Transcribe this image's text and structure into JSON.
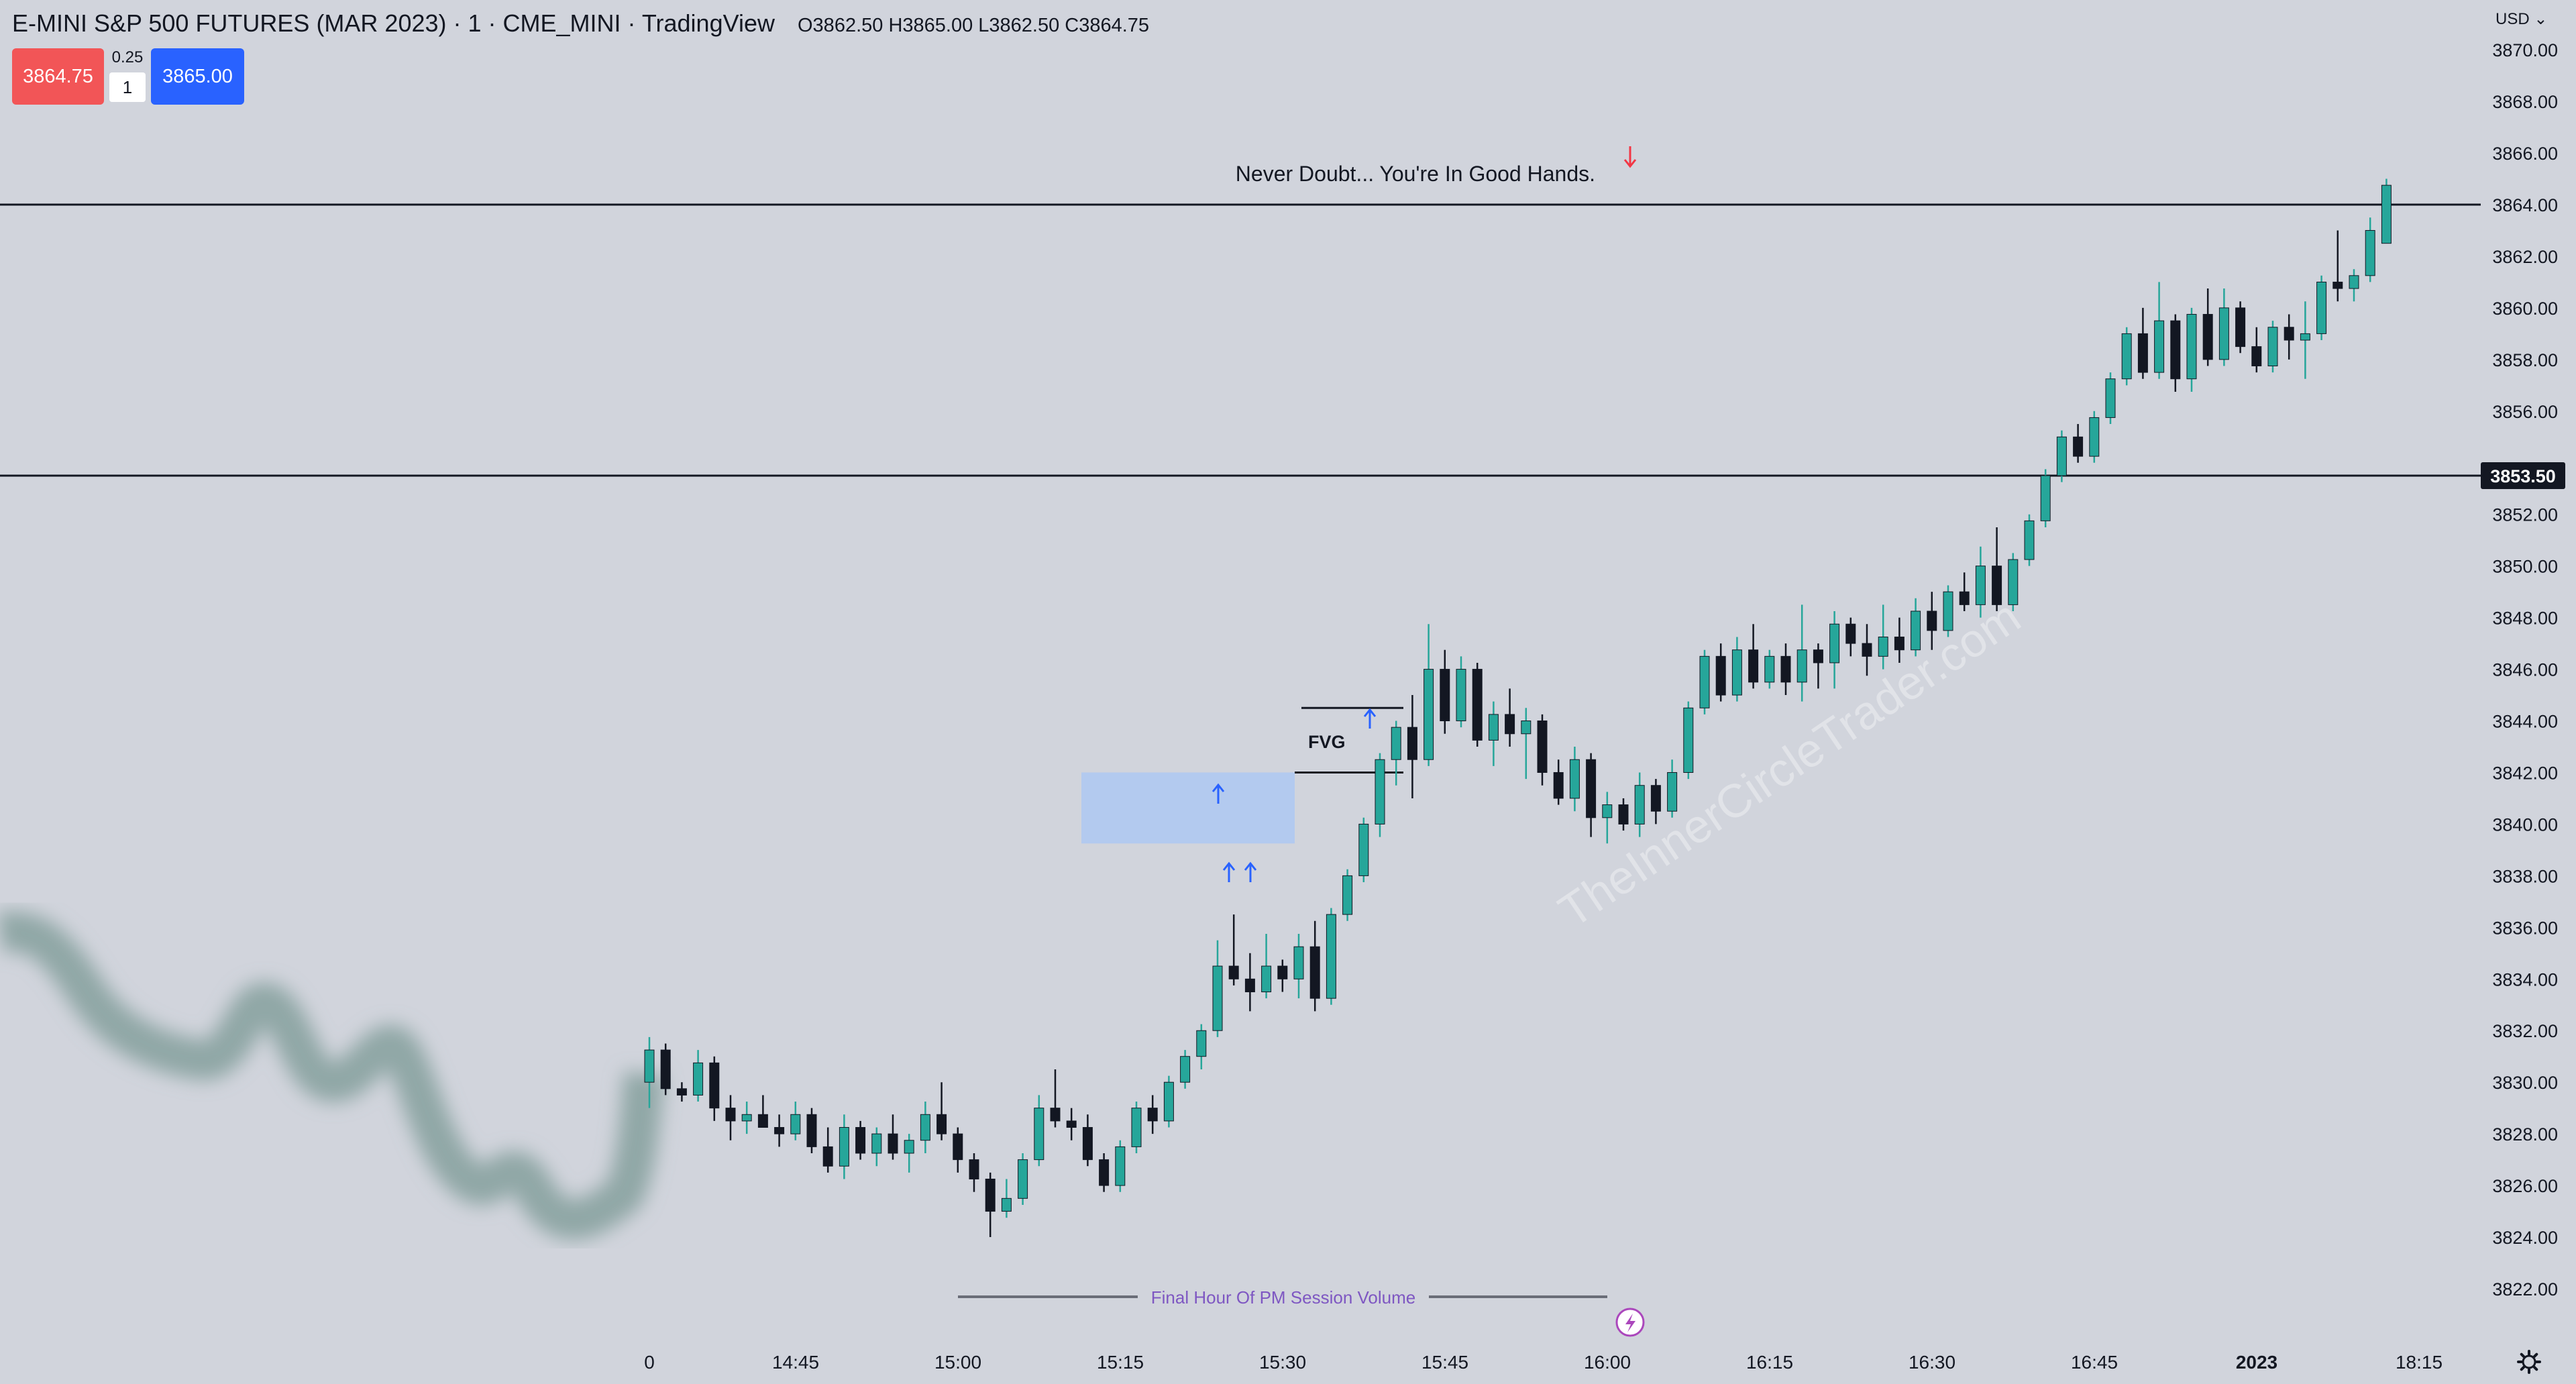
{
  "header": {
    "symbol_title": "E-MINI S&P 500 FUTURES (MAR 2023) · 1 · CME_MINI · TradingView",
    "ohlc": "O3862.50 H3865.00 L3862.50 C3864.75",
    "sell_price": "3864.75",
    "buy_price": "3865.00",
    "spread": "0.25",
    "quantity": "1",
    "currency": "USD"
  },
  "annotations": {
    "headline": "Never Doubt... You're In Good Hands.",
    "fvg_label": "FVG",
    "volume_label": "Final Hour Of PM Session Volume",
    "watermark": "TheInnerCircleTrader.com",
    "current_price_label": "3853.50"
  },
  "colors": {
    "background": "#d1d4dc",
    "up_candle": "#26a69a",
    "down_candle": "#131722",
    "fvg_box": "#a8c7f5",
    "arrow_blue": "#2962ff",
    "arrow_red": "#f23645",
    "volume_text": "#7e57c2"
  },
  "icons": {
    "settings": "gear-icon",
    "replay": "lightning-icon"
  },
  "chart_data": {
    "type": "candlestick",
    "title": "E-MINI S&P 500 FUTURES (MAR 2023) · 1 · CME_MINI · TradingView",
    "x_tick_labels": [
      "0",
      "14:45",
      "15:00",
      "15:15",
      "15:30",
      "15:45",
      "16:00",
      "16:15",
      "16:30",
      "16:45",
      "2023",
      "18:15"
    ],
    "y_tick_labels": [
      "3870.00",
      "3868.00",
      "3866.00",
      "3864.00",
      "3862.00",
      "3860.00",
      "3858.00",
      "3856.00",
      "3854.00",
      "3852.00",
      "3850.00",
      "3848.00",
      "3846.00",
      "3844.00",
      "3842.00",
      "3840.00",
      "3838.00",
      "3836.00",
      "3834.00",
      "3832.00",
      "3830.00",
      "3828.00",
      "3826.00",
      "3824.00",
      "3822.00"
    ],
    "ylim": [
      3821,
      3871
    ],
    "horizontal_lines": [
      3864.0,
      3853.5
    ],
    "fvg_zone": {
      "y_top": 3842.0,
      "y_bottom": 3839.25
    },
    "fvg_bounds": [
      3844.5,
      3842.0
    ],
    "candles": [
      {
        "t": "14:39",
        "o": 3830.0,
        "h": 3831.75,
        "l": 3829.0,
        "c": 3831.25
      },
      {
        "t": "14:40",
        "o": 3831.25,
        "h": 3831.5,
        "l": 3829.5,
        "c": 3829.75
      },
      {
        "t": "14:41",
        "o": 3829.75,
        "h": 3830.0,
        "l": 3829.25,
        "c": 3829.5
      },
      {
        "t": "14:42",
        "o": 3829.5,
        "h": 3831.25,
        "l": 3829.25,
        "c": 3830.75
      },
      {
        "t": "14:43",
        "o": 3830.75,
        "h": 3831.0,
        "l": 3828.5,
        "c": 3829.0
      },
      {
        "t": "14:44",
        "o": 3829.0,
        "h": 3829.5,
        "l": 3827.75,
        "c": 3828.5
      },
      {
        "t": "14:45",
        "o": 3828.5,
        "h": 3829.25,
        "l": 3828.0,
        "c": 3828.75
      },
      {
        "t": "14:46",
        "o": 3828.75,
        "h": 3829.5,
        "l": 3828.25,
        "c": 3828.25
      },
      {
        "t": "14:47",
        "o": 3828.25,
        "h": 3828.75,
        "l": 3827.5,
        "c": 3828.0
      },
      {
        "t": "14:48",
        "o": 3828.0,
        "h": 3829.25,
        "l": 3827.75,
        "c": 3828.75
      },
      {
        "t": "14:49",
        "o": 3828.75,
        "h": 3829.0,
        "l": 3827.25,
        "c": 3827.5
      },
      {
        "t": "14:50",
        "o": 3827.5,
        "h": 3828.25,
        "l": 3826.5,
        "c": 3826.75
      },
      {
        "t": "14:51",
        "o": 3826.75,
        "h": 3828.75,
        "l": 3826.25,
        "c": 3828.25
      },
      {
        "t": "14:52",
        "o": 3828.25,
        "h": 3828.5,
        "l": 3827.0,
        "c": 3827.25
      },
      {
        "t": "14:53",
        "o": 3827.25,
        "h": 3828.25,
        "l": 3826.75,
        "c": 3828.0
      },
      {
        "t": "14:54",
        "o": 3828.0,
        "h": 3828.75,
        "l": 3827.0,
        "c": 3827.25
      },
      {
        "t": "14:55",
        "o": 3827.25,
        "h": 3828.0,
        "l": 3826.5,
        "c": 3827.75
      },
      {
        "t": "14:56",
        "o": 3827.75,
        "h": 3829.25,
        "l": 3827.25,
        "c": 3828.75
      },
      {
        "t": "14:57",
        "o": 3828.75,
        "h": 3830.0,
        "l": 3827.75,
        "c": 3828.0
      },
      {
        "t": "14:58",
        "o": 3828.0,
        "h": 3828.25,
        "l": 3826.5,
        "c": 3827.0
      },
      {
        "t": "14:59",
        "o": 3827.0,
        "h": 3827.25,
        "l": 3825.75,
        "c": 3826.25
      },
      {
        "t": "15:00",
        "o": 3826.25,
        "h": 3826.5,
        "l": 3824.0,
        "c": 3825.0
      },
      {
        "t": "15:01",
        "o": 3825.0,
        "h": 3826.25,
        "l": 3824.75,
        "c": 3825.5
      },
      {
        "t": "15:02",
        "o": 3825.5,
        "h": 3827.25,
        "l": 3825.25,
        "c": 3827.0
      },
      {
        "t": "15:03",
        "o": 3827.0,
        "h": 3829.5,
        "l": 3826.75,
        "c": 3829.0
      },
      {
        "t": "15:04",
        "o": 3829.0,
        "h": 3830.5,
        "l": 3828.25,
        "c": 3828.5
      },
      {
        "t": "15:05",
        "o": 3828.5,
        "h": 3829.0,
        "l": 3827.75,
        "c": 3828.25
      },
      {
        "t": "15:06",
        "o": 3828.25,
        "h": 3828.75,
        "l": 3826.75,
        "c": 3827.0
      },
      {
        "t": "15:07",
        "o": 3827.0,
        "h": 3827.25,
        "l": 3825.75,
        "c": 3826.0
      },
      {
        "t": "15:08",
        "o": 3826.0,
        "h": 3827.75,
        "l": 3825.75,
        "c": 3827.5
      },
      {
        "t": "15:09",
        "o": 3827.5,
        "h": 3829.25,
        "l": 3827.25,
        "c": 3829.0
      },
      {
        "t": "15:10",
        "o": 3829.0,
        "h": 3829.5,
        "l": 3828.0,
        "c": 3828.5
      },
      {
        "t": "15:11",
        "o": 3828.5,
        "h": 3830.25,
        "l": 3828.25,
        "c": 3830.0
      },
      {
        "t": "15:12",
        "o": 3830.0,
        "h": 3831.25,
        "l": 3829.75,
        "c": 3831.0
      },
      {
        "t": "15:13",
        "o": 3831.0,
        "h": 3832.25,
        "l": 3830.5,
        "c": 3832.0
      },
      {
        "t": "15:14",
        "o": 3832.0,
        "h": 3835.5,
        "l": 3831.75,
        "c": 3834.5
      },
      {
        "t": "15:15",
        "o": 3834.5,
        "h": 3836.5,
        "l": 3833.75,
        "c": 3834.0
      },
      {
        "t": "15:16",
        "o": 3834.0,
        "h": 3835.0,
        "l": 3832.75,
        "c": 3833.5
      },
      {
        "t": "15:17",
        "o": 3833.5,
        "h": 3835.75,
        "l": 3833.25,
        "c": 3834.5
      },
      {
        "t": "15:18",
        "o": 3834.5,
        "h": 3834.75,
        "l": 3833.5,
        "c": 3834.0
      },
      {
        "t": "15:19",
        "o": 3834.0,
        "h": 3835.75,
        "l": 3833.25,
        "c": 3835.25
      },
      {
        "t": "15:20",
        "o": 3835.25,
        "h": 3836.25,
        "l": 3832.75,
        "c": 3833.25
      },
      {
        "t": "15:21",
        "o": 3833.25,
        "h": 3836.75,
        "l": 3833.0,
        "c": 3836.5
      },
      {
        "t": "15:22",
        "o": 3836.5,
        "h": 3838.25,
        "l": 3836.25,
        "c": 3838.0
      },
      {
        "t": "15:23",
        "o": 3838.0,
        "h": 3840.25,
        "l": 3837.75,
        "c": 3840.0
      },
      {
        "t": "15:24",
        "o": 3840.0,
        "h": 3842.75,
        "l": 3839.5,
        "c": 3842.5
      },
      {
        "t": "15:25",
        "o": 3842.5,
        "h": 3844.0,
        "l": 3841.5,
        "c": 3843.75
      },
      {
        "t": "15:26",
        "o": 3843.75,
        "h": 3845.0,
        "l": 3841.0,
        "c": 3842.5
      },
      {
        "t": "15:27",
        "o": 3842.5,
        "h": 3847.75,
        "l": 3842.25,
        "c": 3846.0
      },
      {
        "t": "15:28",
        "o": 3846.0,
        "h": 3846.75,
        "l": 3843.5,
        "c": 3844.0
      },
      {
        "t": "15:29",
        "o": 3844.0,
        "h": 3846.5,
        "l": 3843.75,
        "c": 3846.0
      },
      {
        "t": "15:30",
        "o": 3846.0,
        "h": 3846.25,
        "l": 3843.0,
        "c": 3843.25
      },
      {
        "t": "15:31",
        "o": 3843.25,
        "h": 3844.75,
        "l": 3842.25,
        "c": 3844.25
      },
      {
        "t": "15:32",
        "o": 3844.25,
        "h": 3845.25,
        "l": 3843.0,
        "c": 3843.5
      },
      {
        "t": "15:33",
        "o": 3843.5,
        "h": 3844.5,
        "l": 3841.75,
        "c": 3844.0
      },
      {
        "t": "15:34",
        "o": 3844.0,
        "h": 3844.25,
        "l": 3841.5,
        "c": 3842.0
      },
      {
        "t": "15:35",
        "o": 3842.0,
        "h": 3842.5,
        "l": 3840.75,
        "c": 3841.0
      },
      {
        "t": "15:36",
        "o": 3841.0,
        "h": 3843.0,
        "l": 3840.5,
        "c": 3842.5
      },
      {
        "t": "15:37",
        "o": 3842.5,
        "h": 3842.75,
        "l": 3839.5,
        "c": 3840.25
      },
      {
        "t": "15:38",
        "o": 3840.25,
        "h": 3841.25,
        "l": 3839.25,
        "c": 3840.75
      },
      {
        "t": "15:39",
        "o": 3840.75,
        "h": 3841.0,
        "l": 3839.75,
        "c": 3840.0
      },
      {
        "t": "15:40",
        "o": 3840.0,
        "h": 3842.0,
        "l": 3839.5,
        "c": 3841.5
      },
      {
        "t": "15:41",
        "o": 3841.5,
        "h": 3841.75,
        "l": 3840.0,
        "c": 3840.5
      },
      {
        "t": "15:42",
        "o": 3840.5,
        "h": 3842.5,
        "l": 3840.25,
        "c": 3842.0
      },
      {
        "t": "15:43",
        "o": 3842.0,
        "h": 3844.75,
        "l": 3841.75,
        "c": 3844.5
      },
      {
        "t": "15:44",
        "o": 3844.5,
        "h": 3846.75,
        "l": 3844.25,
        "c": 3846.5
      },
      {
        "t": "15:45",
        "o": 3846.5,
        "h": 3847.0,
        "l": 3844.75,
        "c": 3845.0
      },
      {
        "t": "15:46",
        "o": 3845.0,
        "h": 3847.25,
        "l": 3844.75,
        "c": 3846.75
      },
      {
        "t": "15:47",
        "o": 3846.75,
        "h": 3847.75,
        "l": 3845.25,
        "c": 3845.5
      },
      {
        "t": "15:48",
        "o": 3845.5,
        "h": 3846.75,
        "l": 3845.25,
        "c": 3846.5
      },
      {
        "t": "15:49",
        "o": 3846.5,
        "h": 3847.0,
        "l": 3845.0,
        "c": 3845.5
      },
      {
        "t": "15:50",
        "o": 3845.5,
        "h": 3848.5,
        "l": 3844.75,
        "c": 3846.75
      },
      {
        "t": "15:51",
        "o": 3846.75,
        "h": 3847.0,
        "l": 3845.25,
        "c": 3846.25
      },
      {
        "t": "15:52",
        "o": 3846.25,
        "h": 3848.25,
        "l": 3845.25,
        "c": 3847.75
      },
      {
        "t": "15:53",
        "o": 3847.75,
        "h": 3848.0,
        "l": 3846.5,
        "c": 3847.0
      },
      {
        "t": "15:54",
        "o": 3847.0,
        "h": 3847.75,
        "l": 3845.75,
        "c": 3846.5
      },
      {
        "t": "15:55",
        "o": 3846.5,
        "h": 3848.5,
        "l": 3846.0,
        "c": 3847.25
      },
      {
        "t": "15:56",
        "o": 3847.25,
        "h": 3848.0,
        "l": 3846.25,
        "c": 3846.75
      },
      {
        "t": "15:57",
        "o": 3846.75,
        "h": 3848.75,
        "l": 3846.5,
        "c": 3848.25
      },
      {
        "t": "15:58",
        "o": 3848.25,
        "h": 3849.0,
        "l": 3846.75,
        "c": 3847.5
      },
      {
        "t": "15:59",
        "o": 3847.5,
        "h": 3849.25,
        "l": 3847.25,
        "c": 3849.0
      },
      {
        "t": "16:00",
        "o": 3849.0,
        "h": 3849.75,
        "l": 3848.25,
        "c": 3848.5
      },
      {
        "t": "16:01",
        "o": 3848.5,
        "h": 3850.75,
        "l": 3848.0,
        "c": 3850.0
      },
      {
        "t": "16:02",
        "o": 3850.0,
        "h": 3851.5,
        "l": 3848.25,
        "c": 3848.5
      },
      {
        "t": "16:03",
        "o": 3848.5,
        "h": 3850.5,
        "l": 3848.25,
        "c": 3850.25
      },
      {
        "t": "16:04",
        "o": 3850.25,
        "h": 3852.0,
        "l": 3850.0,
        "c": 3851.75
      },
      {
        "t": "16:05",
        "o": 3851.75,
        "h": 3853.75,
        "l": 3851.5,
        "c": 3853.5
      },
      {
        "t": "16:06",
        "o": 3853.5,
        "h": 3855.25,
        "l": 3853.25,
        "c": 3855.0
      },
      {
        "t": "16:07",
        "o": 3855.0,
        "h": 3855.5,
        "l": 3854.0,
        "c": 3854.25
      },
      {
        "t": "16:08",
        "o": 3854.25,
        "h": 3856.0,
        "l": 3854.0,
        "c": 3855.75
      },
      {
        "t": "16:09",
        "o": 3855.75,
        "h": 3857.5,
        "l": 3855.5,
        "c": 3857.25
      },
      {
        "t": "16:10",
        "o": 3857.25,
        "h": 3859.25,
        "l": 3857.0,
        "c": 3859.0
      },
      {
        "t": "16:11",
        "o": 3859.0,
        "h": 3860.0,
        "l": 3857.25,
        "c": 3857.5
      },
      {
        "t": "16:12",
        "o": 3857.5,
        "h": 3861.0,
        "l": 3857.25,
        "c": 3859.5
      },
      {
        "t": "16:13",
        "o": 3859.5,
        "h": 3859.75,
        "l": 3856.75,
        "c": 3857.25
      },
      {
        "t": "16:14",
        "o": 3857.25,
        "h": 3860.0,
        "l": 3856.75,
        "c": 3859.75
      },
      {
        "t": "16:15",
        "o": 3859.75,
        "h": 3860.75,
        "l": 3857.75,
        "c": 3858.0
      },
      {
        "t": "16:16",
        "o": 3858.0,
        "h": 3860.75,
        "l": 3857.75,
        "c": 3860.0
      },
      {
        "t": "16:17",
        "o": 3860.0,
        "h": 3860.25,
        "l": 3858.25,
        "c": 3858.5
      },
      {
        "t": "16:18",
        "o": 3858.5,
        "h": 3859.25,
        "l": 3857.5,
        "c": 3857.75
      },
      {
        "t": "16:19",
        "o": 3857.75,
        "h": 3859.5,
        "l": 3857.5,
        "c": 3859.25
      },
      {
        "t": "16:20",
        "o": 3859.25,
        "h": 3859.75,
        "l": 3858.0,
        "c": 3858.75
      },
      {
        "t": "16:21",
        "o": 3858.75,
        "h": 3860.25,
        "l": 3857.25,
        "c": 3859.0
      },
      {
        "t": "16:22",
        "o": 3859.0,
        "h": 3861.25,
        "l": 3858.75,
        "c": 3861.0
      },
      {
        "t": "16:23",
        "o": 3861.0,
        "h": 3863.0,
        "l": 3860.25,
        "c": 3860.75
      },
      {
        "t": "16:24",
        "o": 3860.75,
        "h": 3861.5,
        "l": 3860.25,
        "c": 3861.25
      },
      {
        "t": "16:25",
        "o": 3861.25,
        "h": 3863.5,
        "l": 3861.0,
        "c": 3863.0
      },
      {
        "t": "16:26",
        "o": 3862.5,
        "h": 3865.0,
        "l": 3862.5,
        "c": 3864.75
      }
    ]
  }
}
